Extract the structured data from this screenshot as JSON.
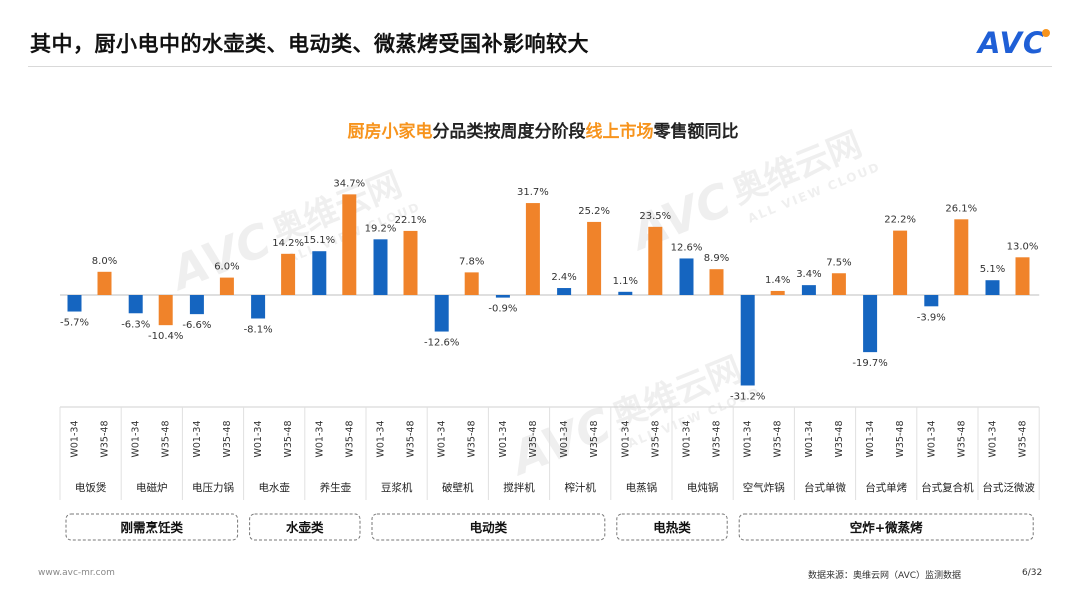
{
  "header": {
    "title": "其中，厨小电中的水壶类、电动类、微蒸烤受国补影响较大",
    "logo_text": "AVC",
    "brand_color": "#1f5fd6",
    "accent_color": "#f7941d"
  },
  "watermark": {
    "cn": "奥维云网",
    "en": "ALL VIEW CLOUD",
    "logo": "AVC"
  },
  "footer": {
    "url": "www.avc-mr.com",
    "source": "数据来源：奥维云网（AVC）监测数据",
    "page": "6/32"
  },
  "chart_data": {
    "type": "bar",
    "title_parts": [
      {
        "text": "厨房小家电",
        "color": "#f7941d"
      },
      {
        "text": "分品类按周度分阶段",
        "color": "#222222"
      },
      {
        "text": "线上市场",
        "color": "#f7941d"
      },
      {
        "text": "零售额同比",
        "color": "#222222"
      }
    ],
    "categories": [
      "电饭煲",
      "电磁炉",
      "电压力锅",
      "电水壶",
      "养生壶",
      "豆浆机",
      "破壁机",
      "搅拌机",
      "榨汁机",
      "电蒸锅",
      "电炖锅",
      "空气炸锅",
      "台式单微",
      "台式单烤",
      "台式复合机",
      "台式泛微波"
    ],
    "period_labels": [
      "W01-34",
      "W35-48"
    ],
    "series": [
      {
        "name": "W01-34",
        "color": "#1565c0",
        "values": [
          -5.7,
          -6.3,
          -6.6,
          -8.1,
          15.1,
          19.2,
          -12.6,
          -0.9,
          2.4,
          1.1,
          12.6,
          -31.2,
          3.4,
          -19.7,
          -3.9,
          5.1
        ]
      },
      {
        "name": "W35-48",
        "color": "#f0832a",
        "values": [
          8.0,
          -10.4,
          6.0,
          14.2,
          34.7,
          22.1,
          7.8,
          31.7,
          25.2,
          23.5,
          8.9,
          1.4,
          7.5,
          22.2,
          26.1,
          13.0
        ]
      }
    ],
    "value_labels": [
      [
        "-5.7%",
        "8.0%"
      ],
      [
        "-6.3%",
        "-10.4%"
      ],
      [
        "-6.6%",
        "6.0%"
      ],
      [
        "-8.1%",
        "14.2%"
      ],
      [
        "15.1%",
        "34.7%"
      ],
      [
        "19.2%",
        "22.1%"
      ],
      [
        "-12.6%",
        "7.8%"
      ],
      [
        "-0.9%",
        "31.7%"
      ],
      [
        "2.4%",
        "25.2%"
      ],
      [
        "1.1%",
        "23.5%"
      ],
      [
        "12.6%",
        "8.9%"
      ],
      [
        "-31.2%",
        "1.4%"
      ],
      [
        "3.4%",
        "7.5%"
      ],
      [
        "-19.7%",
        "22.2%"
      ],
      [
        "-3.9%",
        "26.1%"
      ],
      [
        "5.1%",
        "13.0%"
      ]
    ],
    "groups": [
      {
        "name": "刚需烹饪类",
        "from": 0,
        "to": 2
      },
      {
        "name": "水壶类",
        "from": 3,
        "to": 4
      },
      {
        "name": "电动类",
        "from": 5,
        "to": 8
      },
      {
        "name": "电热类",
        "from": 9,
        "to": 10
      },
      {
        "name": "空炸+微蒸烤",
        "from": 11,
        "to": 15
      }
    ],
    "ylim": [
      -35,
      38
    ],
    "unit": "%"
  }
}
